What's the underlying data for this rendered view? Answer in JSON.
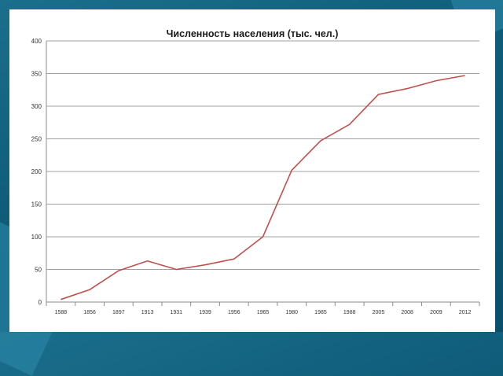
{
  "chart_data": {
    "type": "line",
    "title": "Численность населения (тыс. чел.)",
    "xlabel": "",
    "ylabel": "",
    "ylim": [
      0,
      400
    ],
    "yticks": [
      0,
      50,
      100,
      150,
      200,
      250,
      300,
      350,
      400
    ],
    "grid": true,
    "categories": [
      "1588",
      "1856",
      "1897",
      "1913",
      "1931",
      "1939",
      "1956",
      "1965",
      "1980",
      "1985",
      "1988",
      "2005",
      "2008",
      "2009",
      "2012"
    ],
    "series": [
      {
        "values": [
          4,
          19,
          48,
          63,
          50,
          57,
          66,
          100,
          202,
          247,
          272,
          318,
          327,
          339,
          347
        ],
        "color": "#c0504d"
      }
    ],
    "colors": {
      "gridline": "#a0a0a0",
      "axis": "#8a8a8a"
    }
  }
}
